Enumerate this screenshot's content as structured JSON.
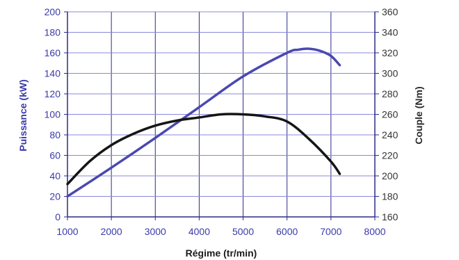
{
  "chart_data": {
    "type": "line",
    "title": "",
    "xlabel": "Régime (tr/min)",
    "ylabel_left": "Puissance (kW)",
    "ylabel_right": "Couple (Nm)",
    "xlim": [
      1000,
      8000
    ],
    "ylim_left": [
      0,
      200
    ],
    "ylim_right": [
      160,
      360
    ],
    "x_ticks": [
      "1000",
      "2000",
      "3000",
      "4000",
      "5000",
      "6000",
      "7000",
      "8000"
    ],
    "y_left_ticks": [
      "0",
      "20",
      "40",
      "60",
      "80",
      "100",
      "120",
      "140",
      "160",
      "180",
      "200"
    ],
    "y_right_ticks": [
      "160",
      "180",
      "200",
      "220",
      "240",
      "260",
      "280",
      "300",
      "320",
      "340",
      "360"
    ],
    "grid": true,
    "series": [
      {
        "axis": "left",
        "color": "#4a48b0",
        "x": [
          1000,
          2000,
          3000,
          4000,
          5000,
          6000,
          6250,
          6500,
          6750,
          7000,
          7200
        ],
        "y": [
          20,
          48,
          77,
          107,
          137,
          160,
          163,
          164,
          162,
          157,
          148
        ]
      },
      {
        "axis": "right",
        "color": "#151515",
        "x": [
          1000,
          1500,
          2000,
          2500,
          3000,
          3500,
          4000,
          4500,
          5000,
          5500,
          6000,
          6500,
          7000,
          7200
        ],
        "y": [
          192,
          214,
          230,
          241,
          249,
          254,
          257,
          260,
          260,
          258,
          253,
          236,
          214,
          202
        ]
      }
    ],
    "colors": {
      "grid_vertical": "#2a2a8a",
      "grid_horizontal": "#8888d8",
      "left_axis_text": "#3a3aa8",
      "right_axis_text": "#333333"
    }
  }
}
